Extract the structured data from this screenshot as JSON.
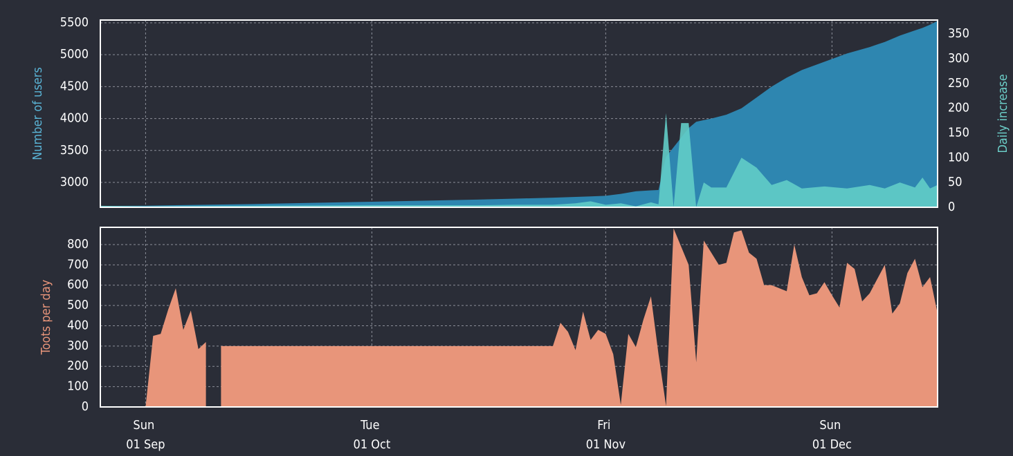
{
  "chart_data": [
    {
      "type": "area",
      "ylabel": "Number of users",
      "y2label": "Daily increase",
      "x": [
        "26 Aug",
        "01 Sep",
        "15 Sep",
        "01 Oct",
        "15 Oct",
        "20 Oct",
        "25 Oct",
        "28 Oct",
        "30 Oct",
        "01 Nov",
        "03 Nov",
        "05 Nov",
        "07 Nov",
        "08 Nov",
        "09 Nov",
        "10 Nov",
        "11 Nov",
        "12 Nov",
        "13 Nov",
        "14 Nov",
        "15 Nov",
        "17 Nov",
        "19 Nov",
        "21 Nov",
        "23 Nov",
        "25 Nov",
        "27 Nov",
        "30 Nov",
        "03 Dec",
        "06 Dec",
        "08 Dec",
        "10 Dec",
        "12 Dec",
        "13 Dec",
        "14 Dec",
        "15 Dec"
      ],
      "xlim": [
        "26 Aug",
        "15 Dec"
      ],
      "xticks": [
        "01 Sep",
        "01 Oct",
        "01 Nov",
        "01 Dec"
      ],
      "ylim": [
        2610,
        5543
      ],
      "yticks": [
        3000,
        3500,
        4000,
        4500,
        5000,
        5500
      ],
      "y2lim": [
        0,
        378
      ],
      "y2ticks": [
        0,
        50,
        100,
        150,
        200,
        250,
        300,
        350
      ],
      "grid": true,
      "series": [
        {
          "color": "#2e86b0",
          "values": [
            2630,
            2635,
            2660,
            2697,
            2730,
            2745,
            2760,
            2772,
            2780,
            2790,
            2820,
            2860,
            2875,
            2880,
            3400,
            3550,
            3700,
            3850,
            3950,
            3975,
            4000,
            4060,
            4160,
            4330,
            4500,
            4640,
            4760,
            4890,
            5020,
            5120,
            5200,
            5300,
            5380,
            5420,
            5470,
            5530
          ]
        },
        {
          "color": "#62cdc8",
          "axis": "y2",
          "values": [
            3,
            2,
            3,
            4,
            4,
            5,
            5,
            8,
            12,
            5,
            8,
            2,
            10,
            6,
            190,
            0,
            170,
            170,
            0,
            50,
            40,
            40,
            100,
            80,
            45,
            55,
            38,
            42,
            38,
            45,
            38,
            50,
            40,
            60,
            38,
            45
          ]
        }
      ]
    },
    {
      "type": "area",
      "ylabel": "Toots per day",
      "x": [
        "26 Aug",
        "01 Sep",
        "02 Sep",
        "03 Sep",
        "04 Sep",
        "05 Sep",
        "06 Sep",
        "07 Sep",
        "08 Sep",
        "09 Sep",
        "10 Sep",
        "11 Sep",
        "25 Oct",
        "26 Oct",
        "27 Oct",
        "28 Oct",
        "29 Oct",
        "30 Oct",
        "31 Oct",
        "01 Nov",
        "02 Nov",
        "03 Nov",
        "04 Nov",
        "05 Nov",
        "06 Nov",
        "07 Nov",
        "08 Nov",
        "09 Nov",
        "10 Nov",
        "11 Nov",
        "12 Nov",
        "13 Nov",
        "14 Nov",
        "15 Nov",
        "16 Nov",
        "17 Nov",
        "18 Nov",
        "19 Nov",
        "20 Nov",
        "21 Nov",
        "22 Nov",
        "23 Nov",
        "24 Nov",
        "25 Nov",
        "26 Nov",
        "27 Nov",
        "28 Nov",
        "29 Nov",
        "30 Nov",
        "01 Dec",
        "02 Dec",
        "03 Dec",
        "04 Dec",
        "05 Dec",
        "06 Dec",
        "07 Dec",
        "08 Dec",
        "09 Dec",
        "10 Dec",
        "11 Dec",
        "12 Dec",
        "13 Dec",
        "14 Dec",
        "15 Dec"
      ],
      "xlim": [
        "26 Aug",
        "15 Dec"
      ],
      "xticks": [
        {
          "value": "01 Sep",
          "label": "Sun 01 Sep"
        },
        {
          "value": "01 Oct",
          "label": "Tue 01 Oct"
        },
        {
          "value": "01 Nov",
          "label": "Fri 01 Nov"
        },
        {
          "value": "01 Dec",
          "label": "Sun 01 Dec"
        }
      ],
      "ylim": [
        0,
        885
      ],
      "yticks": [
        0,
        100,
        200,
        300,
        400,
        500,
        600,
        700,
        800
      ],
      "grid": true,
      "series": [
        {
          "color": "#e8957a",
          "values": [
            0,
            0,
            350,
            360,
            480,
            585,
            380,
            475,
            285,
            320,
            null,
            300,
            300,
            415,
            370,
            280,
            470,
            330,
            380,
            360,
            260,
            10,
            360,
            295,
            430,
            545,
            260,
            5,
            880,
            790,
            700,
            220,
            820,
            760,
            700,
            710,
            860,
            870,
            760,
            730,
            600,
            600,
            585,
            570,
            800,
            640,
            550,
            560,
            615,
            550,
            490,
            710,
            680,
            520,
            560,
            630,
            700,
            460,
            510,
            660,
            730,
            590,
            640,
            460
          ]
        }
      ]
    }
  ]
}
